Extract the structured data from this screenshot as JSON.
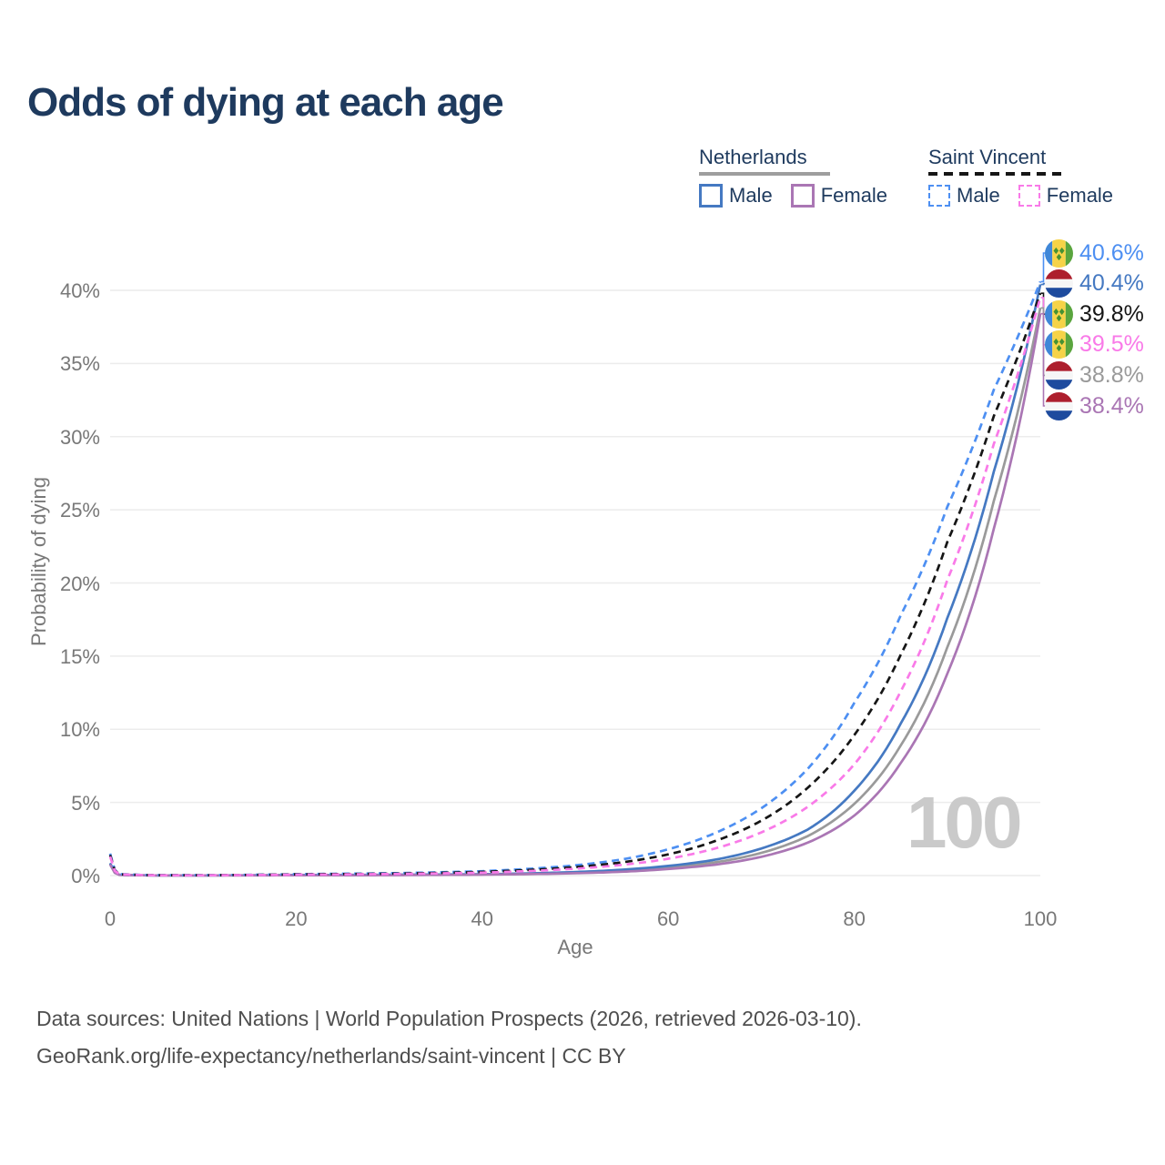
{
  "title": "Odds of dying at each age",
  "watermark": "100",
  "legend": {
    "groups": [
      {
        "title": "Netherlands",
        "line_style": "solid",
        "items": [
          {
            "label": "Male",
            "series": "nl-male"
          },
          {
            "label": "Female",
            "series": "nl-female"
          }
        ]
      },
      {
        "title": "Saint Vincent",
        "line_style": "dashed",
        "items": [
          {
            "label": "Male",
            "series": "sv-male"
          },
          {
            "label": "Female",
            "series": "sv-female"
          }
        ]
      }
    ]
  },
  "footer": {
    "line1": "Data sources: United Nations | World Population Prospects (2026, retrieved 2026-03-10).",
    "line2": "GeoRank.org/life-expectancy/netherlands/saint-vincent | CC BY"
  },
  "chart_data": {
    "type": "line",
    "title": "Odds of dying at each age",
    "xlabel": "Age",
    "ylabel": "Probability of dying",
    "xlim": [
      0,
      100
    ],
    "ylim_pct": [
      0,
      40.6
    ],
    "grid": "horizontal",
    "legend_position": "top-right",
    "x_ticks": [
      {
        "v": 0,
        "label": "0"
      },
      {
        "v": 20,
        "label": "20"
      },
      {
        "v": 40,
        "label": "40"
      },
      {
        "v": 60,
        "label": "60"
      },
      {
        "v": 80,
        "label": "80"
      },
      {
        "v": 100,
        "label": "100"
      }
    ],
    "y_ticks": [
      {
        "v": 0,
        "label": "0%"
      },
      {
        "v": 5,
        "label": "5%"
      },
      {
        "v": 10,
        "label": "10%"
      },
      {
        "v": 15,
        "label": "15%"
      },
      {
        "v": 20,
        "label": "20%"
      },
      {
        "v": 25,
        "label": "25%"
      },
      {
        "v": 30,
        "label": "30%"
      },
      {
        "v": 35,
        "label": "35%"
      },
      {
        "v": 40,
        "label": "40%"
      }
    ],
    "sample_ages": [
      0,
      1,
      5,
      10,
      20,
      30,
      40,
      45,
      50,
      55,
      60,
      65,
      70,
      75,
      80,
      85,
      90,
      95,
      100
    ],
    "series": [
      {
        "id": "nl-both",
        "country": "Netherlands",
        "flag": "nl",
        "sex": "both",
        "line_style": "solid",
        "color": "#9a9a9a",
        "end_label": "38.8%",
        "values_pct": [
          0.8,
          0.05,
          0.01,
          0.01,
          0.028,
          0.045,
          0.08,
          0.125,
          0.2,
          0.33,
          0.55,
          0.9,
          1.55,
          2.7,
          4.9,
          8.9,
          15.6,
          25.6,
          38.8
        ]
      },
      {
        "id": "nl-male",
        "country": "Netherlands",
        "flag": "nl",
        "sex": "male",
        "line_style": "solid",
        "color": "#4579c2",
        "end_label": "40.4%",
        "values_pct": [
          0.85,
          0.055,
          0.012,
          0.012,
          0.038,
          0.055,
          0.095,
          0.15,
          0.24,
          0.4,
          0.66,
          1.08,
          1.85,
          3.15,
          5.8,
          10.4,
          17.6,
          27.6,
          40.4
        ]
      },
      {
        "id": "nl-female",
        "country": "Netherlands",
        "flag": "nl",
        "sex": "female",
        "line_style": "solid",
        "color": "#aa76b4",
        "end_label": "38.4%",
        "values_pct": [
          0.75,
          0.045,
          0.009,
          0.009,
          0.018,
          0.03,
          0.065,
          0.1,
          0.16,
          0.26,
          0.45,
          0.74,
          1.28,
          2.25,
          4.1,
          7.7,
          13.8,
          23.7,
          38.4
        ]
      },
      {
        "id": "sv-male",
        "country": "Saint Vincent",
        "flag": "vc",
        "sex": "male",
        "line_style": "dashed",
        "color": "#4d8ff2",
        "end_label": "40.6%",
        "values_pct": [
          1.5,
          0.1,
          0.028,
          0.028,
          0.1,
          0.16,
          0.3,
          0.46,
          0.7,
          1.1,
          1.8,
          2.9,
          4.6,
          7.3,
          11.8,
          17.8,
          25.2,
          33.2,
          40.6
        ]
      },
      {
        "id": "sv-both",
        "country": "Saint Vincent",
        "flag": "vc",
        "sex": "both",
        "line_style": "dashed",
        "color": "#161616",
        "end_label": "39.8%",
        "values_pct": [
          1.4,
          0.09,
          0.024,
          0.024,
          0.085,
          0.13,
          0.25,
          0.38,
          0.58,
          0.9,
          1.45,
          2.35,
          3.75,
          6.0,
          9.6,
          15.1,
          22.8,
          31.4,
          39.8
        ]
      },
      {
        "id": "sv-female",
        "country": "Saint Vincent",
        "flag": "vc",
        "sex": "female",
        "line_style": "dashed",
        "color": "#f97ae8",
        "end_label": "39.5%",
        "values_pct": [
          1.3,
          0.085,
          0.02,
          0.02,
          0.065,
          0.105,
          0.2,
          0.31,
          0.47,
          0.73,
          1.15,
          1.85,
          2.95,
          4.7,
          7.6,
          12.6,
          20.2,
          29.5,
          39.5
        ]
      }
    ],
    "end_label_order": [
      "sv-male",
      "nl-male",
      "sv-both",
      "sv-female",
      "nl-both",
      "nl-female"
    ]
  }
}
